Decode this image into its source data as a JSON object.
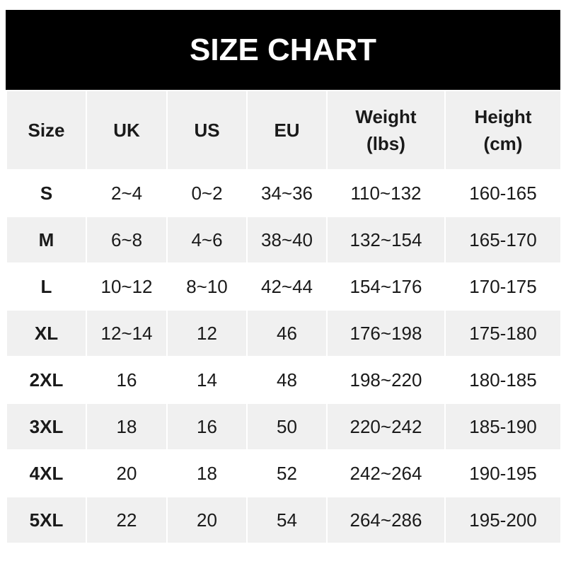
{
  "title": "SIZE CHART",
  "headers": [
    {
      "line1": "Size",
      "line2": ""
    },
    {
      "line1": "UK",
      "line2": ""
    },
    {
      "line1": "US",
      "line2": ""
    },
    {
      "line1": "EU",
      "line2": ""
    },
    {
      "line1": "Weight",
      "line2": "(lbs)"
    },
    {
      "line1": "Height",
      "line2": "(cm)"
    }
  ],
  "rows": [
    [
      "S",
      "2~4",
      "0~2",
      "34~36",
      "110~132",
      "160-165"
    ],
    [
      "M",
      "6~8",
      "4~6",
      "38~40",
      "132~154",
      "165-170"
    ],
    [
      "L",
      "10~12",
      "8~10",
      "42~44",
      "154~176",
      "170-175"
    ],
    [
      "XL",
      "12~14",
      "12",
      "46",
      "176~198",
      "175-180"
    ],
    [
      "2XL",
      "16",
      "14",
      "48",
      "198~220",
      "180-185"
    ],
    [
      "3XL",
      "18",
      "16",
      "50",
      "220~242",
      "185-190"
    ],
    [
      "4XL",
      "20",
      "18",
      "52",
      "242~264",
      "190-195"
    ],
    [
      "5XL",
      "22",
      "20",
      "54",
      "264~286",
      "195-200"
    ]
  ]
}
